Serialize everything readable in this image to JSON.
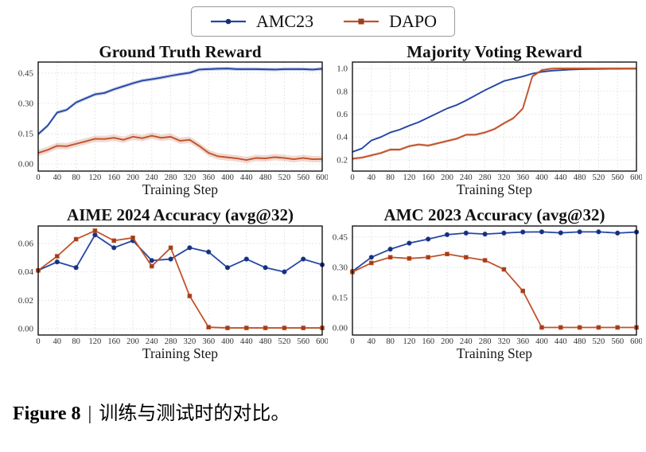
{
  "legend": {
    "items": [
      {
        "label": "AMC23",
        "color": "#2646a4",
        "edge": "#172f73",
        "marker": "circle"
      },
      {
        "label": "DAPO",
        "color": "#c0522b",
        "edge": "#9c3e1b",
        "marker": "square"
      }
    ]
  },
  "caption": {
    "prefix": "Figure 8",
    "separator": "|",
    "text": "训练与测试时的对比。"
  },
  "colors": {
    "grid": "#d8d8d8",
    "frame": "#000000",
    "tick": "#333333",
    "title": "#111111",
    "blue": "#2646a4",
    "orange": "#c0522b"
  },
  "chart_data": [
    {
      "type": "line",
      "title": "Ground Truth Reward",
      "xlabel": "Training Step",
      "xlim": [
        0,
        600
      ],
      "ylim": [
        -0.035,
        0.505
      ],
      "xticks": [
        0,
        40,
        80,
        120,
        160,
        200,
        240,
        280,
        320,
        360,
        400,
        440,
        480,
        520,
        560,
        600
      ],
      "yticks": [
        0.0,
        0.15,
        0.3,
        0.45
      ],
      "ytick_labels": [
        "0.00",
        "0.15",
        "0.30",
        "0.45"
      ],
      "grid": true,
      "legend_position": "top-center-shared",
      "x": [
        0,
        20,
        40,
        60,
        80,
        100,
        120,
        140,
        160,
        180,
        200,
        220,
        240,
        260,
        280,
        300,
        320,
        340,
        360,
        380,
        400,
        420,
        440,
        460,
        480,
        500,
        520,
        540,
        560,
        580,
        600
      ],
      "series": [
        {
          "name": "AMC23",
          "color": "#2646a4",
          "edge": "#172f73",
          "marker": null,
          "band": 0.009,
          "values": [
            0.148,
            0.19,
            0.255,
            0.268,
            0.305,
            0.325,
            0.345,
            0.352,
            0.37,
            0.385,
            0.4,
            0.413,
            0.42,
            0.428,
            0.437,
            0.445,
            0.452,
            0.468,
            0.47,
            0.472,
            0.473,
            0.47,
            0.47,
            0.47,
            0.469,
            0.468,
            0.47,
            0.47,
            0.47,
            0.468,
            0.472
          ]
        },
        {
          "name": "DAPO",
          "color": "#c0522b",
          "edge": "#9c3e1b",
          "marker": null,
          "band": 0.016,
          "values": [
            0.055,
            0.07,
            0.09,
            0.088,
            0.1,
            0.112,
            0.125,
            0.124,
            0.13,
            0.12,
            0.135,
            0.128,
            0.14,
            0.13,
            0.135,
            0.115,
            0.12,
            0.09,
            0.055,
            0.038,
            0.033,
            0.028,
            0.02,
            0.03,
            0.028,
            0.034,
            0.03,
            0.024,
            0.03,
            0.024,
            0.025
          ]
        }
      ]
    },
    {
      "type": "line",
      "title": "Majority Voting Reward",
      "xlabel": "Training Step",
      "xlim": [
        0,
        600
      ],
      "ylim": [
        0.102,
        1.056
      ],
      "xticks": [
        0,
        40,
        80,
        120,
        160,
        200,
        240,
        280,
        320,
        360,
        400,
        440,
        480,
        520,
        560,
        600
      ],
      "yticks": [
        0.2,
        0.4,
        0.6,
        0.8,
        1.0
      ],
      "ytick_labels": [
        "0.2",
        "0.4",
        "0.6",
        "0.8",
        "1.0"
      ],
      "grid": true,
      "legend_position": "top-center-shared",
      "x": [
        0,
        20,
        40,
        60,
        80,
        100,
        120,
        140,
        160,
        180,
        200,
        220,
        240,
        260,
        280,
        300,
        320,
        340,
        360,
        380,
        400,
        420,
        440,
        460,
        480,
        500,
        520,
        540,
        560,
        580,
        600
      ],
      "series": [
        {
          "name": "AMC23",
          "color": "#2646a4",
          "edge": "#172f73",
          "marker": null,
          "band": 0.007,
          "values": [
            0.27,
            0.3,
            0.37,
            0.4,
            0.44,
            0.465,
            0.5,
            0.53,
            0.57,
            0.61,
            0.65,
            0.68,
            0.72,
            0.765,
            0.81,
            0.85,
            0.89,
            0.91,
            0.93,
            0.955,
            0.97,
            0.98,
            0.985,
            0.99,
            0.993,
            0.995,
            0.996,
            0.997,
            0.997,
            0.998,
            0.998
          ]
        },
        {
          "name": "DAPO",
          "color": "#c0522b",
          "edge": "#9c3e1b",
          "marker": null,
          "band": 0.012,
          "values": [
            0.21,
            0.22,
            0.24,
            0.26,
            0.29,
            0.29,
            0.32,
            0.335,
            0.325,
            0.345,
            0.365,
            0.385,
            0.42,
            0.42,
            0.44,
            0.47,
            0.52,
            0.565,
            0.65,
            0.93,
            0.985,
            0.998,
            1.0,
            1.0,
            1.0,
            1.0,
            1.0,
            1.0,
            1.0,
            1.0,
            1.0
          ]
        }
      ]
    },
    {
      "type": "line",
      "title": "AIME 2024 Accuracy (avg@32)",
      "xlabel": "Training Step",
      "xlim": [
        0,
        600
      ],
      "ylim": [
        -0.0045,
        0.0723
      ],
      "xticks": [
        0,
        40,
        80,
        120,
        160,
        200,
        240,
        280,
        320,
        360,
        400,
        440,
        480,
        520,
        560,
        600
      ],
      "yticks": [
        0.0,
        0.02,
        0.04,
        0.06
      ],
      "ytick_labels": [
        "0.00",
        "0.02",
        "0.04",
        "0.06"
      ],
      "grid": true,
      "legend_position": "top-center-shared",
      "x": [
        0,
        40,
        80,
        120,
        160,
        200,
        240,
        280,
        320,
        360,
        400,
        440,
        480,
        520,
        560,
        600
      ],
      "series": [
        {
          "name": "AMC23",
          "color": "#2646a4",
          "edge": "#172f73",
          "marker": "circle",
          "band": 0,
          "values": [
            0.041,
            0.047,
            0.043,
            0.066,
            0.057,
            0.062,
            0.048,
            0.049,
            0.057,
            0.054,
            0.043,
            0.049,
            0.043,
            0.04,
            0.049,
            0.045
          ]
        },
        {
          "name": "DAPO",
          "color": "#c0522b",
          "edge": "#9c3e1b",
          "marker": "square",
          "band": 0,
          "values": [
            0.041,
            0.051,
            0.063,
            0.069,
            0.062,
            0.064,
            0.044,
            0.057,
            0.023,
            0.001,
            0.0005,
            0.0005,
            0.0005,
            0.0005,
            0.0005,
            0.0005
          ]
        }
      ]
    },
    {
      "type": "line",
      "title": "AMC 2023 Accuracy (avg@32)",
      "xlabel": "Training Step",
      "xlim": [
        0,
        600
      ],
      "ylim": [
        -0.0355,
        0.505
      ],
      "xticks": [
        0,
        40,
        80,
        120,
        160,
        200,
        240,
        280,
        320,
        360,
        400,
        440,
        480,
        520,
        560,
        600
      ],
      "yticks": [
        0.0,
        0.15,
        0.3,
        0.45
      ],
      "ytick_labels": [
        "0.00",
        "0.15",
        "0.30",
        "0.45"
      ],
      "grid": true,
      "legend_position": "top-center-shared",
      "x": [
        0,
        40,
        80,
        120,
        160,
        200,
        240,
        280,
        320,
        360,
        400,
        440,
        480,
        520,
        560,
        600
      ],
      "series": [
        {
          "name": "AMC23",
          "color": "#2646a4",
          "edge": "#172f73",
          "marker": "circle",
          "band": 0,
          "values": [
            0.28,
            0.35,
            0.39,
            0.42,
            0.44,
            0.462,
            0.47,
            0.465,
            0.47,
            0.475,
            0.476,
            0.471,
            0.476,
            0.476,
            0.47,
            0.475
          ]
        },
        {
          "name": "DAPO",
          "color": "#c0522b",
          "edge": "#9c3e1b",
          "marker": "square",
          "band": 0,
          "values": [
            0.277,
            0.322,
            0.35,
            0.344,
            0.35,
            0.366,
            0.35,
            0.335,
            0.29,
            0.183,
            0.002,
            0.002,
            0.002,
            0.002,
            0.002,
            0.002
          ]
        }
      ]
    }
  ]
}
